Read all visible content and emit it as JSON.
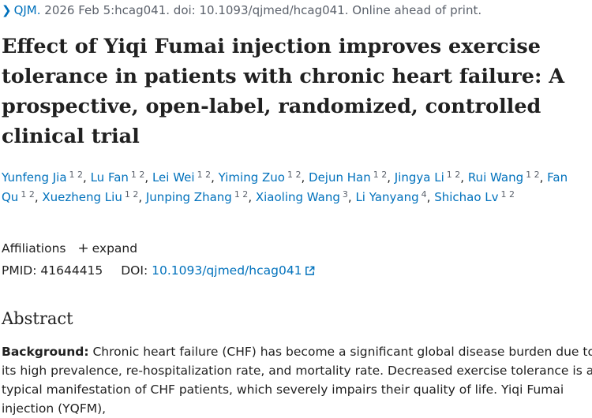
{
  "citation": {
    "journal": "QJM.",
    "details": " 2026 Feb 5:hcag041. doi: 10.1093/qjmed/hcag041. Online ahead of print."
  },
  "title": "Effect of Yiqi Fumai injection improves exercise tolerance in patients with chronic heart failure: A prospective, open-label, randomized, controlled clinical trial",
  "authors": [
    {
      "name": "Yunfeng Jia",
      "sup": "1 2"
    },
    {
      "name": "Lu Fan",
      "sup": "1 2"
    },
    {
      "name": "Lei Wei",
      "sup": "1 2"
    },
    {
      "name": "Yiming Zuo",
      "sup": "1 2"
    },
    {
      "name": "Dejun Han",
      "sup": "1 2"
    },
    {
      "name": "Jingya Li",
      "sup": "1 2"
    },
    {
      "name": "Rui Wang",
      "sup": "1 2"
    },
    {
      "name": "Fan Qu",
      "sup": "1 2"
    },
    {
      "name": "Xuezheng Liu",
      "sup": "1 2"
    },
    {
      "name": "Junping Zhang",
      "sup": "1 2"
    },
    {
      "name": "Xiaoling Wang",
      "sup": "3"
    },
    {
      "name": "Li Yanyang",
      "sup": "4"
    },
    {
      "name": "Shichao Lv",
      "sup": "1 2"
    }
  ],
  "affiliations": {
    "label": "Affiliations",
    "expand_icon": "plus-icon",
    "expand_label": "expand"
  },
  "ids": {
    "pmid_label": "PMID:",
    "pmid": "41644415",
    "doi_label": "DOI:",
    "doi": "10.1093/qjmed/hcag041",
    "doi_icon": "external-link-icon"
  },
  "abstract": {
    "heading": "Abstract",
    "background_label": "Background:",
    "background_text": " Chronic heart failure (CHF) has become a significant global disease burden due to its high prevalence, re-hospitalization rate, and mortality rate. Decreased exercise tolerance is a typical manifestation of CHF patients, which severely impairs their quality of life. Yiqi Fumai injection (YQFM),"
  },
  "colors": {
    "link": "#0071bc",
    "text": "#212121",
    "muted": "#5b616b"
  }
}
